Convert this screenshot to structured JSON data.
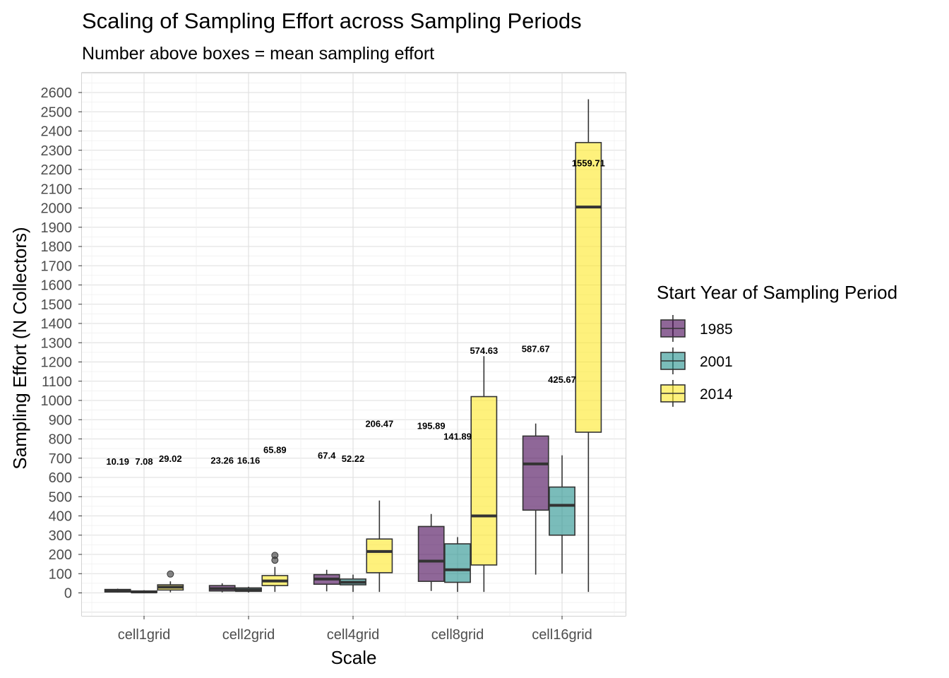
{
  "chart_data": {
    "type": "box",
    "title": "Scaling of Sampling Effort across Sampling Periods",
    "subtitle": "Number above boxes = mean sampling effort",
    "xlabel": "Scale",
    "ylabel": "Sampling Effort (N Collectors)",
    "ylim": [
      -120,
      2700
    ],
    "yticks": [
      0,
      100,
      200,
      300,
      400,
      500,
      600,
      700,
      800,
      900,
      1000,
      1100,
      1200,
      1300,
      1400,
      1500,
      1600,
      1700,
      1800,
      1900,
      2000,
      2100,
      2200,
      2300,
      2400,
      2500,
      2600
    ],
    "categories": [
      "cell1grid",
      "cell2grid",
      "cell4grid",
      "cell8grid",
      "cell16grid"
    ],
    "grid": true,
    "legend": {
      "title": "Start Year of Sampling Period",
      "position": "right"
    },
    "series": [
      {
        "name": "1985",
        "color": "#440154",
        "boxes": [
          {
            "min": 2,
            "q1": 5,
            "median": 10,
            "q3": 18,
            "max": 22,
            "outliers": [],
            "mean": 10.19,
            "mean_label": "10.19",
            "label_y": 685
          },
          {
            "min": 3,
            "q1": 10,
            "median": 22,
            "q3": 38,
            "max": 50,
            "outliers": [],
            "mean": 23.26,
            "mean_label": "23.26",
            "label_y": 690
          },
          {
            "min": 8,
            "q1": 45,
            "median": 72,
            "q3": 95,
            "max": 120,
            "outliers": [],
            "mean": 67.4,
            "mean_label": "67.4",
            "label_y": 715
          },
          {
            "min": 10,
            "q1": 60,
            "median": 165,
            "q3": 345,
            "max": 410,
            "outliers": [],
            "mean": 195.89,
            "mean_label": "195.89",
            "label_y": 870
          },
          {
            "min": 95,
            "q1": 430,
            "median": 670,
            "q3": 815,
            "max": 880,
            "outliers": [],
            "mean": 587.67,
            "mean_label": "587.67",
            "label_y": 1270
          }
        ]
      },
      {
        "name": "2001",
        "color": "#21908C",
        "boxes": [
          {
            "min": 0,
            "q1": 2,
            "median": 5,
            "q3": 10,
            "max": 14,
            "outliers": [],
            "mean": 7.08,
            "mean_label": "7.08",
            "label_y": 685
          },
          {
            "min": 2,
            "q1": 8,
            "median": 15,
            "q3": 26,
            "max": 32,
            "outliers": [],
            "mean": 16.16,
            "mean_label": "16.16",
            "label_y": 690
          },
          {
            "min": 5,
            "q1": 42,
            "median": 55,
            "q3": 72,
            "max": 95,
            "outliers": [],
            "mean": 52.22,
            "mean_label": "52.22",
            "label_y": 700
          },
          {
            "min": 5,
            "q1": 55,
            "median": 120,
            "q3": 255,
            "max": 290,
            "outliers": [],
            "mean": 141.89,
            "mean_label": "141.89",
            "label_y": 815
          },
          {
            "min": 100,
            "q1": 300,
            "median": 455,
            "q3": 550,
            "max": 715,
            "outliers": [],
            "mean": 425.67,
            "mean_label": "425.67",
            "label_y": 1110
          }
        ]
      },
      {
        "name": "2014",
        "color": "#FDE725",
        "boxes": [
          {
            "min": 3,
            "q1": 15,
            "median": 30,
            "q3": 42,
            "max": 60,
            "outliers": [
              98
            ],
            "mean": 29.02,
            "mean_label": "29.02",
            "label_y": 700
          },
          {
            "min": 5,
            "q1": 38,
            "median": 62,
            "q3": 90,
            "max": 135,
            "outliers": [
              170,
              195
            ],
            "mean": 65.89,
            "mean_label": "65.89",
            "label_y": 745
          },
          {
            "min": 5,
            "q1": 105,
            "median": 215,
            "q3": 280,
            "max": 480,
            "outliers": [],
            "mean": 206.47,
            "mean_label": "206.47",
            "label_y": 880
          },
          {
            "min": 5,
            "q1": 145,
            "median": 400,
            "q3": 1020,
            "max": 1230,
            "outliers": [],
            "mean": 574.63,
            "mean_label": "574.63",
            "label_y": 1260
          },
          {
            "min": 5,
            "q1": 835,
            "median": 2005,
            "q3": 2340,
            "max": 2565,
            "outliers": [],
            "mean": 1559.71,
            "mean_label": "1559.71",
            "label_y": 2235
          }
        ]
      }
    ]
  }
}
